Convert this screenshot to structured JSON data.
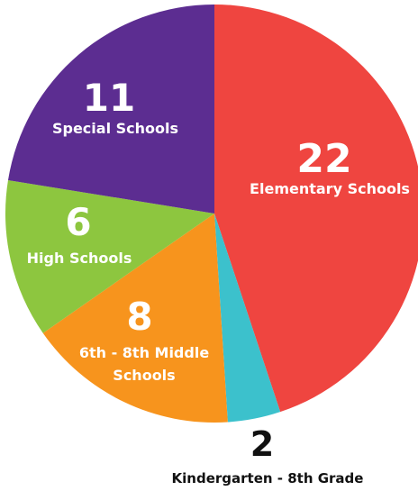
{
  "chart_data": {
    "type": "pie",
    "slices": [
      {
        "value": 22,
        "label": "Elementary Schools",
        "color": "#ef4540"
      },
      {
        "value": 2,
        "label": "Kindergarten - 8th Grade",
        "color": "#3cc1cc"
      },
      {
        "value": 8,
        "label": "6th - 8th Middle Schools",
        "label_lines": [
          "6th - 8th Middle",
          "Schools"
        ],
        "color": "#f7941d"
      },
      {
        "value": 6,
        "label": "High Schools",
        "color": "#8dc63f"
      },
      {
        "value": 11,
        "label": "Special Schools",
        "color": "#5c2d91"
      }
    ],
    "value_labels": [
      "22",
      "2",
      "8",
      "6",
      "11"
    ],
    "start_angle": "12 o'clock",
    "direction": "clockwise",
    "legend": "none"
  }
}
